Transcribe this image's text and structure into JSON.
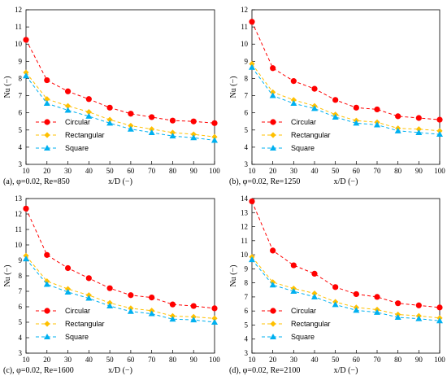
{
  "chart_data": [
    {
      "type": "line",
      "caption": "(a), φ=0.02, Re=850",
      "x": [
        10,
        20,
        30,
        40,
        50,
        60,
        70,
        80,
        90,
        100
      ],
      "xlabel": "x/D (−)",
      "ylabel": "Nu (−)",
      "xlim": [
        10,
        100
      ],
      "ylim": [
        3,
        12
      ],
      "yticks": [
        3,
        4,
        5,
        6,
        7,
        8,
        9,
        10,
        11,
        12
      ],
      "legend_position": "bottom-left",
      "grid": false,
      "series": [
        {
          "name": "Circular",
          "color": "#ff0000",
          "marker": "circle",
          "values": [
            10.25,
            7.9,
            7.25,
            6.8,
            6.3,
            5.95,
            5.75,
            5.55,
            5.5,
            5.4
          ]
        },
        {
          "name": "Rectangular",
          "color": "#ffc000",
          "marker": "diamond",
          "values": [
            8.35,
            6.8,
            6.4,
            6.05,
            5.6,
            5.25,
            5.05,
            4.85,
            4.75,
            4.6
          ]
        },
        {
          "name": "Square",
          "color": "#00b0f0",
          "marker": "triangle",
          "values": [
            8.15,
            6.55,
            6.15,
            5.8,
            5.4,
            5.05,
            4.85,
            4.65,
            4.55,
            4.4
          ]
        }
      ]
    },
    {
      "type": "line",
      "caption": "(b), φ=0.02, Re=1250",
      "x": [
        10,
        20,
        30,
        40,
        50,
        60,
        70,
        80,
        90,
        100
      ],
      "xlabel": "x/D (−)",
      "ylabel": "Nu (−)",
      "xlim": [
        10,
        100
      ],
      "ylim": [
        3,
        12
      ],
      "yticks": [
        3,
        4,
        5,
        6,
        7,
        8,
        9,
        10,
        11,
        12
      ],
      "legend_position": "bottom-left",
      "grid": false,
      "series": [
        {
          "name": "Circular",
          "color": "#ff0000",
          "marker": "circle",
          "values": [
            11.3,
            8.6,
            7.85,
            7.4,
            6.75,
            6.3,
            6.2,
            5.8,
            5.7,
            5.6
          ]
        },
        {
          "name": "Rectangular",
          "color": "#ffc000",
          "marker": "diamond",
          "values": [
            8.85,
            7.2,
            6.75,
            6.4,
            5.9,
            5.55,
            5.45,
            5.1,
            5.05,
            4.95
          ]
        },
        {
          "name": "Square",
          "color": "#00b0f0",
          "marker": "triangle",
          "values": [
            8.65,
            7.0,
            6.55,
            6.25,
            5.75,
            5.4,
            5.3,
            4.95,
            4.85,
            4.75
          ]
        }
      ]
    },
    {
      "type": "line",
      "caption": "(c), φ=0.02, Re=1600",
      "x": [
        10,
        20,
        30,
        40,
        50,
        60,
        70,
        80,
        90,
        100
      ],
      "xlabel": "x/D (−)",
      "ylabel": "Nu (−)",
      "xlim": [
        10,
        100
      ],
      "ylim": [
        3,
        13
      ],
      "yticks": [
        3,
        4,
        5,
        6,
        7,
        8,
        9,
        10,
        11,
        12,
        13
      ],
      "legend_position": "bottom-left",
      "grid": false,
      "series": [
        {
          "name": "Circular",
          "color": "#ff0000",
          "marker": "circle",
          "values": [
            12.35,
            9.35,
            8.5,
            7.85,
            7.2,
            6.75,
            6.6,
            6.15,
            6.05,
            5.9
          ]
        },
        {
          "name": "Rectangular",
          "color": "#ffc000",
          "marker": "diamond",
          "values": [
            9.3,
            7.65,
            7.15,
            6.75,
            6.25,
            5.9,
            5.75,
            5.4,
            5.35,
            5.25
          ]
        },
        {
          "name": "Square",
          "color": "#00b0f0",
          "marker": "triangle",
          "values": [
            9.1,
            7.45,
            6.95,
            6.55,
            6.05,
            5.7,
            5.55,
            5.2,
            5.15,
            5.0
          ]
        }
      ]
    },
    {
      "type": "line",
      "caption": "(d), φ=0.02, Re=2100",
      "x": [
        10,
        20,
        30,
        40,
        50,
        60,
        70,
        80,
        90,
        100
      ],
      "xlabel": "x/D (−)",
      "ylabel": "Nu (−)",
      "xlim": [
        10,
        100
      ],
      "ylim": [
        3,
        14
      ],
      "yticks": [
        3,
        4,
        5,
        6,
        7,
        8,
        9,
        10,
        11,
        12,
        13,
        14
      ],
      "legend_position": "bottom-left",
      "grid": false,
      "series": [
        {
          "name": "Circular",
          "color": "#ff0000",
          "marker": "circle",
          "values": [
            13.8,
            10.3,
            9.25,
            8.65,
            7.7,
            7.2,
            7.0,
            6.55,
            6.4,
            6.25
          ]
        },
        {
          "name": "Rectangular",
          "color": "#ffc000",
          "marker": "diamond",
          "values": [
            9.85,
            8.05,
            7.6,
            7.25,
            6.65,
            6.25,
            6.1,
            5.75,
            5.65,
            5.5
          ]
        },
        {
          "name": "Square",
          "color": "#00b0f0",
          "marker": "triangle",
          "values": [
            9.65,
            7.85,
            7.4,
            7.0,
            6.45,
            6.05,
            5.9,
            5.55,
            5.45,
            5.3
          ]
        }
      ]
    }
  ]
}
